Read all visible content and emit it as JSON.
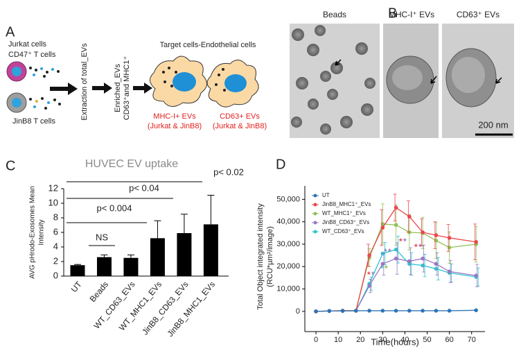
{
  "panel_labels": [
    "A",
    "B",
    "C",
    "D"
  ],
  "diagram": {
    "source_cells": [
      "Jurkat cells",
      "CD47⁺ T cells",
      "JinB8 T cells"
    ],
    "steps": [
      "Extraction of total_EVs",
      "Enriched_EVs",
      "CD63⁺and MHC1⁺"
    ],
    "target": "Target cells-Endothelial cells",
    "ev_labels": [
      [
        "MHC-I+ EVs",
        "(Jurkat & JinB8)"
      ],
      [
        "CD63+ EVs",
        "(Jurkat & JinB8)"
      ]
    ]
  },
  "micrographs": {
    "titles": [
      "Beads",
      "MHC-I⁺ EVs",
      "CD63⁺ EVs"
    ],
    "scale_bar": "200 nm"
  },
  "chart_data": [
    {
      "type": "bar",
      "title": "HUVEC EV uptake",
      "ylabel": [
        "AVG pHrodo-Exosomes Mean",
        "Intensity"
      ],
      "categories": [
        "UT",
        "Beads",
        "WT_CD63_EVs",
        "WT_MHC1_EVs",
        "JinB8_CD63_EVs",
        "JinB8_MHC1_EVs"
      ],
      "values": [
        1.5,
        2.6,
        2.5,
        5.2,
        5.9,
        7.1
      ],
      "errors": [
        0.1,
        0.3,
        0.4,
        2.4,
        2.6,
        4.0
      ],
      "color": "#000000",
      "ylim": [
        0,
        12
      ],
      "yticks": [
        0,
        2,
        4,
        6,
        8,
        10,
        12
      ],
      "annotations": [
        "NS",
        "p< 0.004",
        "p< 0.04",
        "p< 0.02"
      ]
    },
    {
      "type": "line",
      "ylabel": [
        "Total Object integrated intensity",
        "(RCU*µm²/image)"
      ],
      "xlabel": "Time(hours)",
      "x": [
        0,
        6,
        12,
        18,
        24,
        30,
        36,
        42,
        48,
        54,
        60,
        72
      ],
      "xlim": [
        -5,
        76
      ],
      "xticks": [
        0,
        10,
        20,
        30,
        40,
        50,
        60,
        70
      ],
      "ylim": [
        -9000,
        56000
      ],
      "yticks": [
        0,
        {
          "value": 10000,
          "label": "10,000"
        },
        {
          "value": 20000,
          "label": "20,000"
        },
        {
          "value": 30000,
          "label": "30,000"
        },
        {
          "value": 40000,
          "label": "40,000"
        },
        {
          "value": 50000,
          "label": "50,000"
        }
      ],
      "legend": "upper left",
      "series": [
        {
          "name": "UT",
          "color": "#2e75b6",
          "values": [
            0,
            200,
            200,
            300,
            300,
            300,
            300,
            300,
            300,
            300,
            300,
            500
          ],
          "errors": [
            0,
            0,
            0,
            0,
            0,
            0,
            0,
            0,
            0,
            0,
            0,
            0
          ]
        },
        {
          "name": "JinB8_MHC1⁺_EVs",
          "color": "#e8474c",
          "values": [
            0,
            200,
            300,
            300,
            25000,
            37400,
            46300,
            42300,
            35300,
            34000,
            32800,
            31000
          ],
          "errors": [
            0,
            0,
            0,
            0,
            5000,
            8000,
            6000,
            7000,
            6000,
            6000,
            6000,
            8000
          ]
        },
        {
          "name": "WT_MHC1⁺_EVs",
          "color": "#8fc156",
          "values": [
            0,
            200,
            300,
            300,
            24000,
            39000,
            38600,
            35300,
            35000,
            31600,
            28500,
            30000
          ],
          "errors": [
            0,
            0,
            0,
            0,
            4000,
            9000,
            9000,
            8000,
            7000,
            8000,
            7000,
            8000
          ]
        },
        {
          "name": "JinB8_CD63⁺_EVs",
          "color": "#9b77c2",
          "values": [
            0,
            200,
            300,
            300,
            11400,
            21200,
            23600,
            22400,
            23600,
            21200,
            17800,
            16000
          ],
          "errors": [
            0,
            0,
            0,
            0,
            3000,
            5000,
            7000,
            6000,
            6000,
            5000,
            5000,
            5000
          ]
        },
        {
          "name": "WT_CD63⁺_EVs",
          "color": "#2ec4d0",
          "values": [
            0,
            200,
            300,
            300,
            12300,
            25800,
            27600,
            21200,
            20500,
            19000,
            17200,
            15400
          ],
          "errors": [
            0,
            0,
            0,
            0,
            3000,
            5000,
            6000,
            5000,
            5000,
            5000,
            4000,
            4000
          ]
        }
      ],
      "annotations": [
        "*",
        "*",
        "*",
        "*",
        "*",
        "*",
        "*",
        "*",
        "*",
        "*"
      ]
    }
  ]
}
